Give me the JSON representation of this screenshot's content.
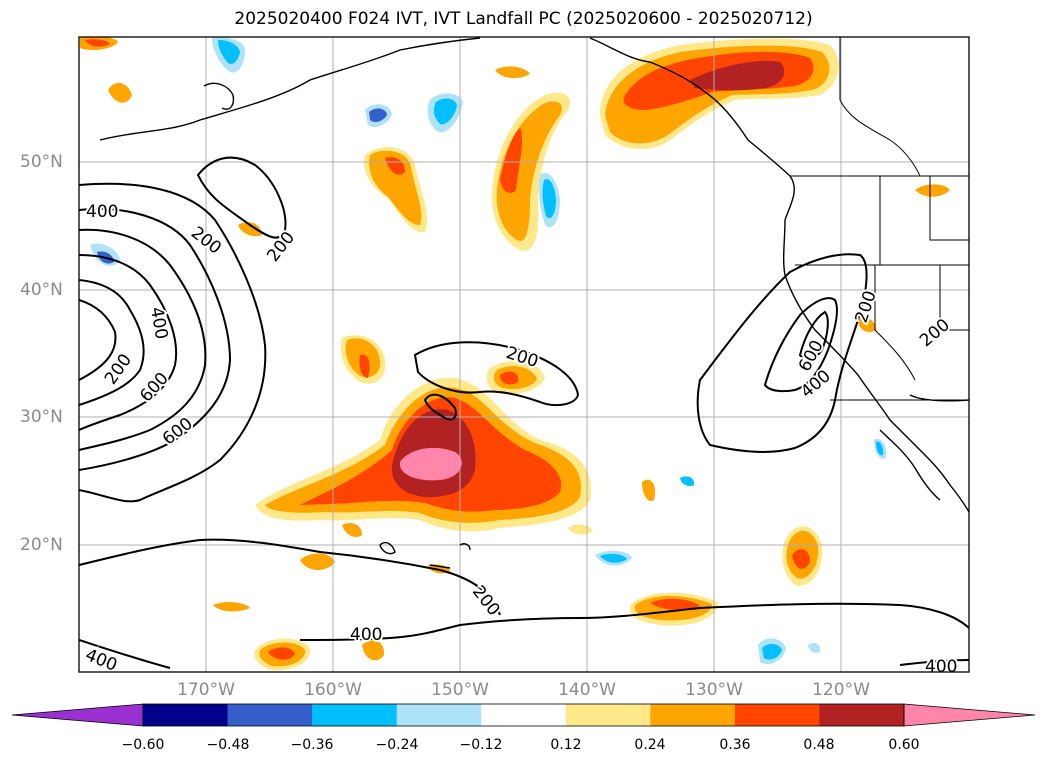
{
  "title": "2025020400 F024 IVT, IVT Landfall PC (2025020600 - 2025020712)",
  "map": {
    "lon_labels": [
      "170°W",
      "160°W",
      "150°W",
      "140°W",
      "130°W",
      "120°W"
    ],
    "lat_labels": [
      "50°N",
      "40°N",
      "30°N",
      "20°N"
    ],
    "contour_labels": [
      "400",
      "200",
      "200",
      "400",
      "200",
      "600",
      "600",
      "200",
      "200",
      "600",
      "400",
      "200",
      "200",
      "400",
      "400",
      "400"
    ]
  },
  "colorbar": {
    "ticks": [
      "−0.60",
      "−0.48",
      "−0.36",
      "−0.24",
      "−0.12",
      "0.12",
      "0.24",
      "0.36",
      "0.48",
      "0.60"
    ],
    "colors": [
      "#9b30d0",
      "#00008b",
      "#3560cc",
      "#00bfff",
      "#aee2f8",
      "#ffffff",
      "#ffe88a",
      "#ffa500",
      "#ff4500",
      "#b22222",
      "#ff85aa"
    ]
  }
}
